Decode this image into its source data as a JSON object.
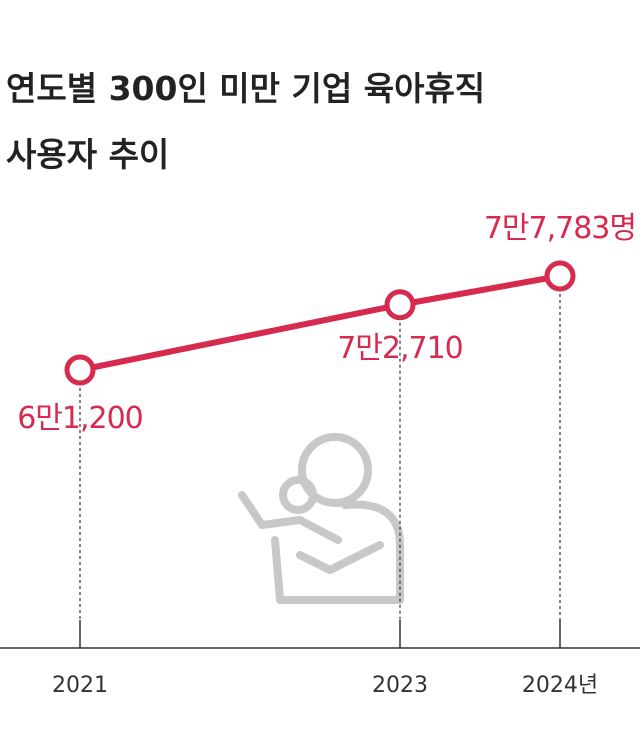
{
  "chart_data": {
    "type": "line",
    "title": [
      "연도별 300인 미만 기업 육아휴직",
      "사용자 추이"
    ],
    "x": [
      2021,
      2023,
      2024
    ],
    "values": [
      61200,
      72710,
      77783
    ],
    "value_labels": [
      "6만1,200",
      "7만2,710",
      "7만7,783명"
    ],
    "color": "#d62a4e",
    "xlim": [
      2020.5,
      2024.5
    ],
    "xticks": [
      2021,
      2023,
      {
        "value": 2024,
        "label": "2024년"
      }
    ]
  }
}
